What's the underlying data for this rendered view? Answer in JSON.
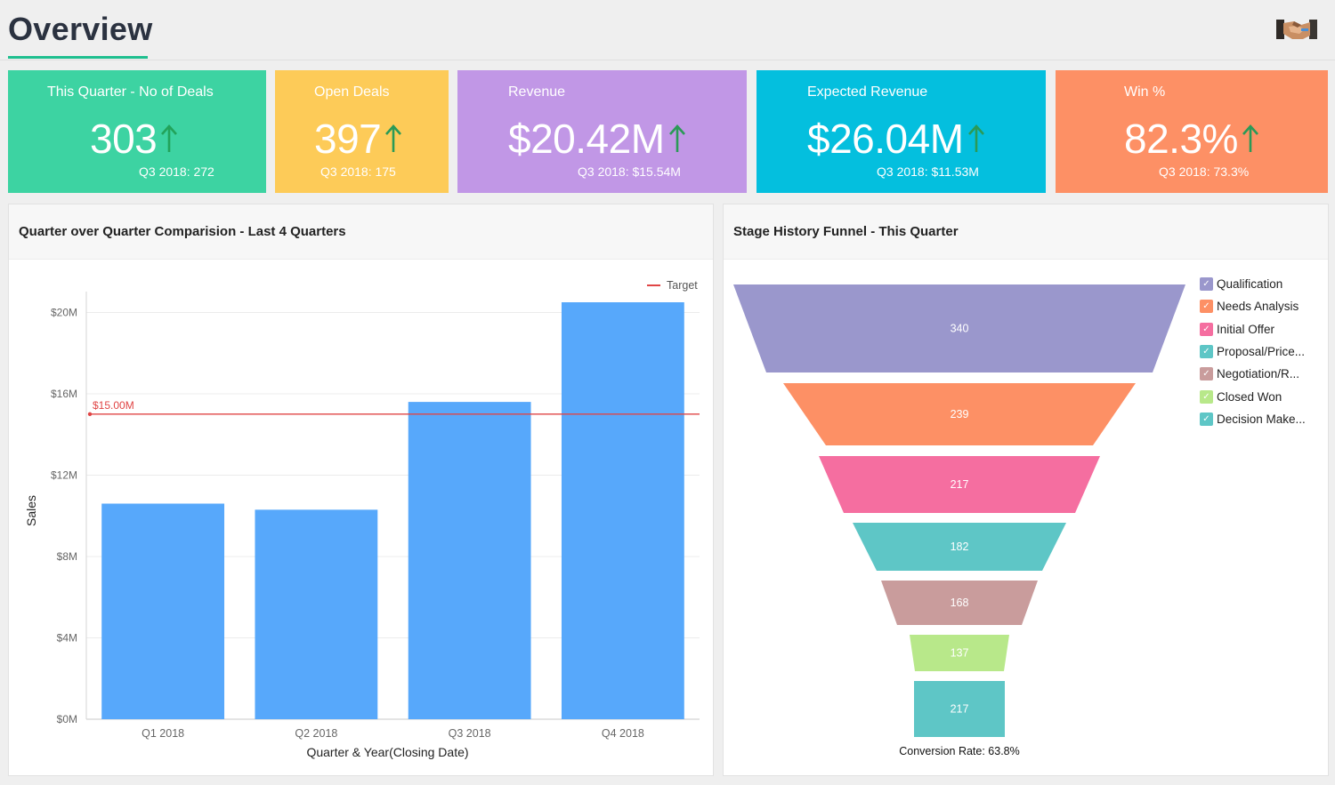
{
  "header": {
    "title": "Overview",
    "avatar_icon": "handshake-icon"
  },
  "kpis": [
    {
      "label": "This Quarter - No of Deals",
      "value": "303",
      "previous": "Q3 2018: 272",
      "color": "#3dd3a2",
      "arrow_color": "#22a35a"
    },
    {
      "label": "Open Deals",
      "value": "397",
      "previous": "Q3 2018: 175",
      "color": "#fdcb58",
      "arrow_color": "#2a9a57"
    },
    {
      "label": "Revenue",
      "value": "$20.42M",
      "previous": "Q3 2018: $15.54M",
      "color": "#c197e6",
      "arrow_color": "#2a9a57"
    },
    {
      "label": "Expected Revenue",
      "value": "$26.04M",
      "previous": "Q3 2018: $11.53M",
      "color": "#04bfde",
      "arrow_color": "#2a9a57"
    },
    {
      "label": "Win %",
      "value": "82.3%",
      "previous": "Q3 2018: 73.3%",
      "color": "#fd9065",
      "arrow_color": "#2a9a57"
    }
  ],
  "bar_panel": {
    "title": "Quarter over Quarter Comparision - Last 4 Quarters"
  },
  "funnel_panel": {
    "title": "Stage History Funnel - This Quarter",
    "conversion": "Conversion Rate: 63.8%"
  },
  "chart_data": [
    {
      "type": "bar",
      "categories": [
        "Q1 2018",
        "Q2 2018",
        "Q3 2018",
        "Q4 2018"
      ],
      "values": [
        10.6,
        10.3,
        15.6,
        20.5
      ],
      "ylim": [
        0,
        20.5
      ],
      "yticks": [
        0,
        4,
        8,
        12,
        16,
        20
      ],
      "ytick_labels": [
        "$0M",
        "$4M",
        "$8M",
        "$12M",
        "$16M",
        "$20M"
      ],
      "xlabel": "Quarter & Year(Closing Date)",
      "ylabel": "Sales",
      "bar_color": "#57a8fb",
      "target": {
        "value": 15.0,
        "label": "$15.00M",
        "legend": "Target",
        "color": "#e04545"
      },
      "grid": true
    },
    {
      "type": "funnel",
      "categories": [
        "Qualification",
        "Needs Analysis",
        "Initial Offer",
        "Proposal/Price...",
        "Negotiation/R...",
        "Closed Won",
        "Decision Make..."
      ],
      "values": [
        340,
        239,
        217,
        182,
        168,
        137,
        217
      ],
      "colors": [
        "#9a97cc",
        "#fd9065",
        "#f56ea0",
        "#5ec6c6",
        "#c99c9c",
        "#b8e88a",
        "#5ec6c6"
      ],
      "legend_position": "right"
    }
  ]
}
